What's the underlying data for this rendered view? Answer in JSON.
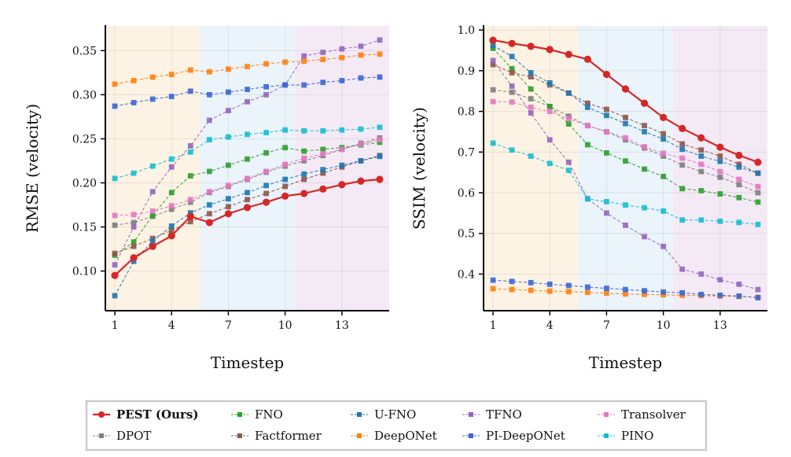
{
  "chart_data": [
    {
      "type": "line",
      "xlabel": "Timestep",
      "ylabel": "RMSE (velocity)",
      "x": [
        1,
        2,
        3,
        4,
        5,
        6,
        7,
        8,
        9,
        10,
        11,
        12,
        13,
        14,
        15
      ],
      "xlim": [
        0.5,
        15.5
      ],
      "ylim": [
        0.055,
        0.378
      ],
      "xticks": [
        1,
        4,
        7,
        10,
        13
      ],
      "yticks": [
        0.1,
        0.15,
        0.2,
        0.25,
        0.3,
        0.35
      ],
      "ytick_labels": [
        "0.10",
        "0.15",
        "0.20",
        "0.25",
        "0.30",
        "0.35"
      ],
      "grid": true,
      "bands": [
        {
          "from": 0.5,
          "to": 5.5,
          "color": "#fdf3e4"
        },
        {
          "from": 5.5,
          "to": 10.5,
          "color": "#ebf3fb"
        },
        {
          "from": 10.5,
          "to": 15.5,
          "color": "#f4eaf6"
        }
      ],
      "series": [
        {
          "name": "DPOT",
          "values": [
            0.152,
            0.155,
            0.162,
            0.17,
            0.178,
            0.189,
            0.196,
            0.204,
            0.212,
            0.219,
            0.225,
            0.231,
            0.238,
            0.245,
            0.251
          ]
        },
        {
          "name": "FNO",
          "values": [
            0.118,
            0.133,
            0.163,
            0.189,
            0.208,
            0.213,
            0.22,
            0.227,
            0.234,
            0.24,
            0.236,
            0.238,
            0.24,
            0.243,
            0.246
          ]
        },
        {
          "name": "Factformer",
          "values": [
            0.12,
            0.128,
            0.137,
            0.146,
            0.156,
            0.165,
            0.173,
            0.181,
            0.188,
            0.196,
            0.204,
            0.211,
            0.218,
            0.225,
            0.231
          ]
        },
        {
          "name": "U-FNO",
          "values": [
            0.072,
            0.111,
            0.134,
            0.151,
            0.166,
            0.175,
            0.182,
            0.189,
            0.197,
            0.204,
            0.21,
            0.215,
            0.22,
            0.225,
            0.23
          ]
        },
        {
          "name": "DeepONet",
          "values": [
            0.312,
            0.316,
            0.32,
            0.323,
            0.328,
            0.326,
            0.329,
            0.332,
            0.335,
            0.337,
            0.338,
            0.34,
            0.342,
            0.345,
            0.346
          ]
        },
        {
          "name": "TFNO",
          "values": [
            0.107,
            0.15,
            0.19,
            0.218,
            0.242,
            0.271,
            0.282,
            0.292,
            0.3,
            0.311,
            0.344,
            0.348,
            0.352,
            0.355,
            0.362
          ]
        },
        {
          "name": "PI-DeepONet",
          "values": [
            0.287,
            0.291,
            0.295,
            0.298,
            0.304,
            0.3,
            0.303,
            0.306,
            0.309,
            0.311,
            0.311,
            0.314,
            0.316,
            0.319,
            0.32
          ]
        },
        {
          "name": "Transolver",
          "values": [
            0.163,
            0.164,
            0.168,
            0.174,
            0.181,
            0.19,
            0.197,
            0.205,
            0.213,
            0.221,
            0.228,
            0.233,
            0.238,
            0.244,
            0.249
          ]
        },
        {
          "name": "PINO",
          "values": [
            0.205,
            0.211,
            0.219,
            0.227,
            0.235,
            0.249,
            0.252,
            0.255,
            0.257,
            0.26,
            0.259,
            0.259,
            0.26,
            0.261,
            0.263
          ]
        },
        {
          "name": "PEST (Ours)",
          "values": [
            0.095,
            0.115,
            0.128,
            0.14,
            0.162,
            0.155,
            0.165,
            0.172,
            0.178,
            0.185,
            0.188,
            0.193,
            0.198,
            0.202,
            0.204
          ]
        }
      ]
    },
    {
      "type": "line",
      "xlabel": "Timestep",
      "ylabel": "SSIM (velocity)",
      "x": [
        1,
        2,
        3,
        4,
        5,
        6,
        7,
        8,
        9,
        10,
        11,
        12,
        13,
        14,
        15
      ],
      "xlim": [
        0.5,
        15.5
      ],
      "ylim": [
        0.31,
        1.01
      ],
      "xticks": [
        1,
        4,
        7,
        10,
        13
      ],
      "yticks": [
        0.4,
        0.5,
        0.6,
        0.7,
        0.8,
        0.9,
        1.0
      ],
      "ytick_labels": [
        "0.4",
        "0.5",
        "0.6",
        "0.7",
        "0.8",
        "0.9",
        "1.0"
      ],
      "grid": true,
      "bands": [
        {
          "from": 0.5,
          "to": 5.5,
          "color": "#fdf3e4"
        },
        {
          "from": 5.5,
          "to": 10.5,
          "color": "#ebf3fb"
        },
        {
          "from": 10.5,
          "to": 15.5,
          "color": "#f4eaf6"
        }
      ],
      "series": [
        {
          "name": "DPOT",
          "values": [
            0.853,
            0.847,
            0.831,
            0.812,
            0.788,
            0.765,
            0.75,
            0.73,
            0.71,
            0.69,
            0.668,
            0.652,
            0.638,
            0.62,
            0.6
          ]
        },
        {
          "name": "FNO",
          "values": [
            0.955,
            0.905,
            0.855,
            0.812,
            0.769,
            0.718,
            0.698,
            0.678,
            0.658,
            0.64,
            0.61,
            0.605,
            0.597,
            0.588,
            0.577
          ]
        },
        {
          "name": "Factformer",
          "values": [
            0.915,
            0.895,
            0.885,
            0.865,
            0.845,
            0.82,
            0.805,
            0.785,
            0.765,
            0.745,
            0.72,
            0.705,
            0.69,
            0.67,
            0.648
          ]
        },
        {
          "name": "U-FNO",
          "values": [
            0.962,
            0.935,
            0.895,
            0.87,
            0.845,
            0.81,
            0.79,
            0.77,
            0.75,
            0.732,
            0.707,
            0.69,
            0.677,
            0.663,
            0.648
          ]
        },
        {
          "name": "DeepONet",
          "values": [
            0.364,
            0.362,
            0.36,
            0.358,
            0.357,
            0.355,
            0.353,
            0.351,
            0.35,
            0.349,
            0.348,
            0.347,
            0.346,
            0.345,
            0.343
          ]
        },
        {
          "name": "TFNO",
          "values": [
            0.925,
            0.862,
            0.796,
            0.73,
            0.675,
            0.585,
            0.55,
            0.52,
            0.492,
            0.468,
            0.412,
            0.4,
            0.386,
            0.375,
            0.362
          ]
        },
        {
          "name": "PI-DeepONet",
          "values": [
            0.385,
            0.382,
            0.379,
            0.375,
            0.372,
            0.368,
            0.365,
            0.362,
            0.359,
            0.356,
            0.354,
            0.35,
            0.348,
            0.346,
            0.342
          ]
        },
        {
          "name": "Transolver",
          "values": [
            0.824,
            0.823,
            0.81,
            0.8,
            0.782,
            0.765,
            0.75,
            0.735,
            0.713,
            0.697,
            0.685,
            0.67,
            0.652,
            0.633,
            0.615
          ]
        },
        {
          "name": "PINO",
          "values": [
            0.722,
            0.705,
            0.69,
            0.672,
            0.655,
            0.585,
            0.578,
            0.57,
            0.563,
            0.555,
            0.533,
            0.533,
            0.53,
            0.527,
            0.522
          ]
        },
        {
          "name": "PEST (Ours)",
          "values": [
            0.975,
            0.967,
            0.96,
            0.952,
            0.94,
            0.928,
            0.891,
            0.855,
            0.82,
            0.785,
            0.758,
            0.735,
            0.712,
            0.692,
            0.675
          ]
        }
      ]
    }
  ],
  "colors": {
    "PEST (Ours)": "#d62728",
    "DPOT": "#7f7f7f",
    "FNO": "#2ca02c",
    "Factformer": "#8c564b",
    "U-FNO": "#1f77b4",
    "DeepONet": "#ff7f0e",
    "TFNO": "#9467bd",
    "PI-DeepONet": "#3a66d6",
    "Transolver": "#e377c2",
    "PINO": "#17becf"
  },
  "legend": {
    "placement": "bottom-center",
    "entries": [
      "PEST (Ours)",
      "FNO",
      "U-FNO",
      "TFNO",
      "Transolver",
      "DPOT",
      "Factformer",
      "DeepONet",
      "PI-DeepONet",
      "PINO"
    ],
    "bold_entry": "PEST (Ours)"
  }
}
